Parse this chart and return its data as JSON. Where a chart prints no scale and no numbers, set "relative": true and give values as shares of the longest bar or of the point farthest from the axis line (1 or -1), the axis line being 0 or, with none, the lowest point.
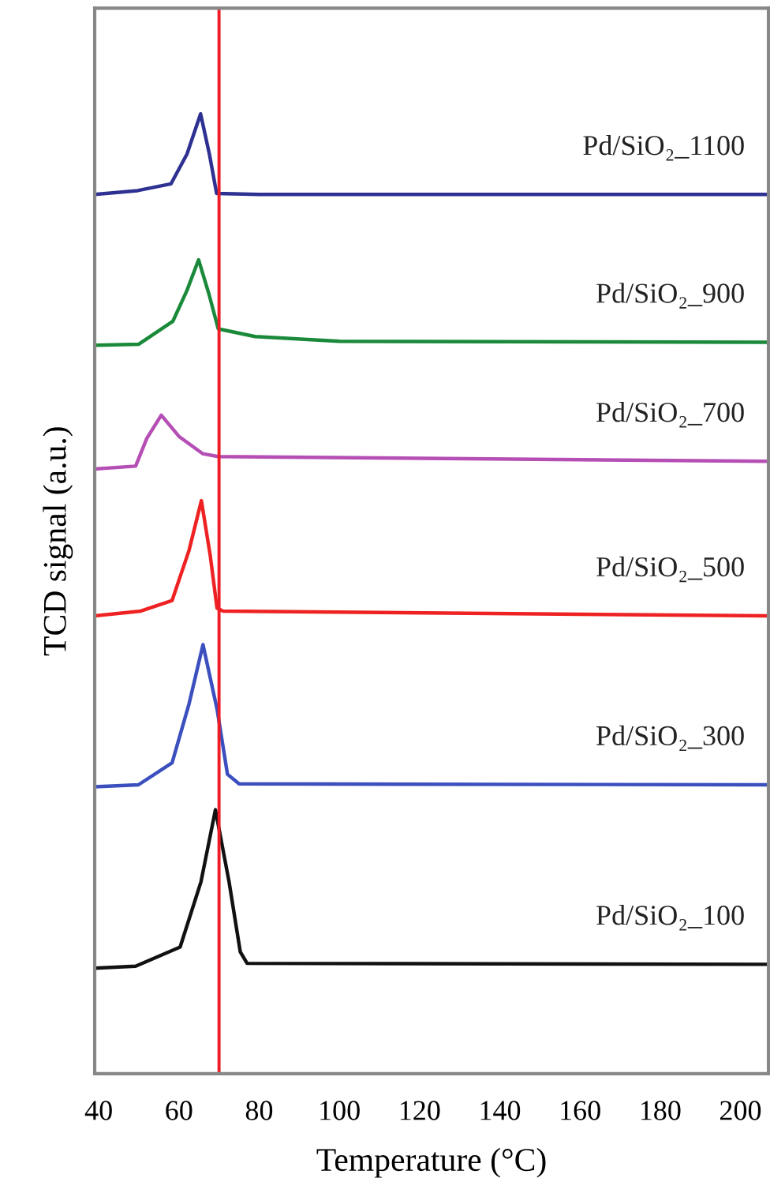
{
  "chart_data": {
    "type": "line",
    "relative": true,
    "xlabel": "Temperature (°C)",
    "ylabel": "TCD signal (a.u.)",
    "xlim": [
      39,
      207
    ],
    "xticks": [
      40,
      60,
      80,
      100,
      120,
      140,
      160,
      180,
      200
    ],
    "grid": false,
    "legend": false,
    "marker": "none",
    "line_style": "solid",
    "ref_lines": [
      {
        "axis": "x",
        "value": 70,
        "color": "#ee1c24"
      }
    ],
    "series": [
      {
        "name": "Pd/SiO₂_1100",
        "color": "#2e3192",
        "x": [
          39,
          49.7,
          58,
          62,
          65.4,
          67.6,
          69.4,
          80,
          207
        ],
        "values": [
          0.916,
          0.92,
          0.927,
          0.958,
          1.0,
          0.958,
          0.917,
          0.916,
          0.916
        ]
      },
      {
        "name": "Pd/SiO₂_900",
        "color": "#1a8a3a",
        "x": [
          39,
          50,
          58.5,
          62,
          64.9,
          67.5,
          69.8,
          79,
          100,
          207
        ],
        "values": [
          0.759,
          0.76,
          0.784,
          0.816,
          0.848,
          0.812,
          0.776,
          0.768,
          0.763,
          0.762
        ]
      },
      {
        "name": "Pd/SiO₂_700",
        "color": "#b54fb5",
        "x": [
          39,
          49.2,
          52,
          55.6,
          60,
          65.9,
          69.8,
          207
        ],
        "values": [
          0.63,
          0.633,
          0.662,
          0.686,
          0.664,
          0.646,
          0.643,
          0.638
        ]
      },
      {
        "name": "Pd/SiO₂_500",
        "color": "#ee2222",
        "x": [
          39,
          50.5,
          58.3,
          62.5,
          65.6,
          67.8,
          69.5,
          71,
          207
        ],
        "values": [
          0.477,
          0.482,
          0.493,
          0.545,
          0.597,
          0.54,
          0.485,
          0.482,
          0.477
        ]
      },
      {
        "name": "Pd/SiO₂_300",
        "color": "#3b4fbf",
        "x": [
          39,
          49.9,
          58.3,
          62.5,
          66,
          69.5,
          72.1,
          75,
          207
        ],
        "values": [
          0.299,
          0.301,
          0.324,
          0.385,
          0.447,
          0.38,
          0.312,
          0.302,
          0.301
        ]
      },
      {
        "name": "Pd/SiO₂_100",
        "color": "#111111",
        "x": [
          39,
          49.2,
          60.3,
          65.5,
          69.1,
          72.5,
          75.3,
          77,
          207
        ],
        "values": [
          0.11,
          0.112,
          0.132,
          0.2,
          0.275,
          0.2,
          0.127,
          0.115,
          0.114
        ]
      }
    ]
  }
}
